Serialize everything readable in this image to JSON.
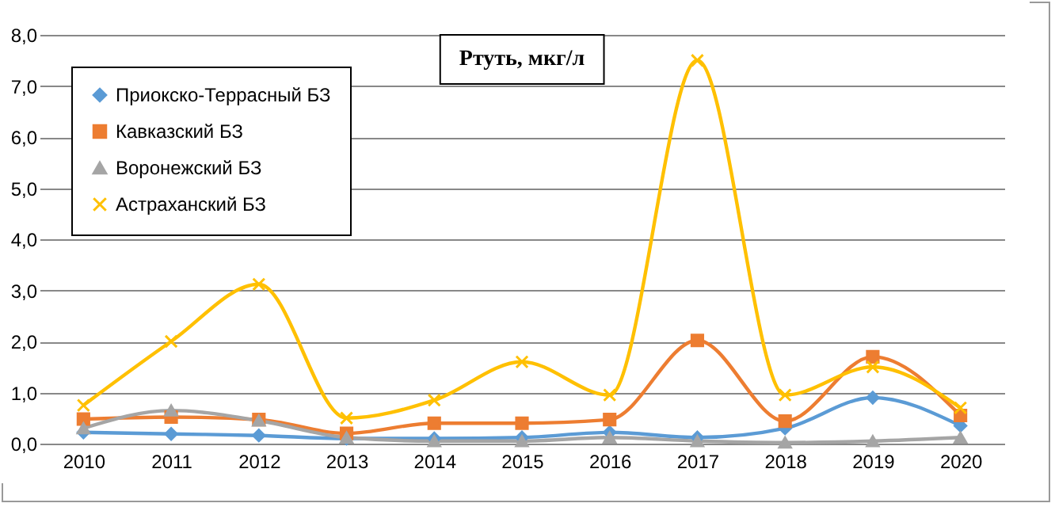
{
  "chart_data": {
    "type": "line",
    "title": "Ртуть, мкг/л",
    "categories": [
      "2010",
      "2011",
      "2012",
      "2013",
      "2014",
      "2015",
      "2016",
      "2017",
      "2018",
      "2019",
      "2020"
    ],
    "series": [
      {
        "name": "Приокско-Террасный БЗ",
        "color": "#5b9bd5",
        "marker": "diamond",
        "values": [
          0.22,
          0.19,
          0.16,
          0.1,
          0.1,
          0.12,
          0.22,
          0.12,
          0.3,
          0.9,
          0.35
        ]
      },
      {
        "name": "Кавказский БЗ",
        "color": "#ed7d31",
        "marker": "square",
        "values": [
          0.48,
          0.52,
          0.47,
          0.2,
          0.4,
          0.4,
          0.47,
          2.02,
          0.44,
          1.7,
          0.55
        ]
      },
      {
        "name": "Воронежский БЗ",
        "color": "#a5a5a5",
        "marker": "triangle",
        "values": [
          0.3,
          0.65,
          0.45,
          0.12,
          0.05,
          0.05,
          0.12,
          0.05,
          0.02,
          0.05,
          0.12
        ]
      },
      {
        "name": "Астраханский БЗ",
        "color": "#ffc000",
        "marker": "cross",
        "values": [
          0.75,
          2.0,
          3.12,
          0.5,
          0.85,
          1.6,
          0.95,
          7.5,
          0.95,
          1.5,
          0.7
        ]
      }
    ],
    "ylim": [
      0,
      8
    ],
    "yticks": [
      {
        "value": 0,
        "label": "0,0"
      },
      {
        "value": 1,
        "label": "1,0"
      },
      {
        "value": 2,
        "label": "2,0"
      },
      {
        "value": 3,
        "label": "3,0"
      },
      {
        "value": 4,
        "label": "4,0"
      },
      {
        "value": 5,
        "label": "5,0"
      },
      {
        "value": 6,
        "label": "6,0"
      },
      {
        "value": 7,
        "label": "7,0"
      },
      {
        "value": 8,
        "label": "8,0"
      }
    ],
    "grid": "y",
    "legend": "top left"
  }
}
